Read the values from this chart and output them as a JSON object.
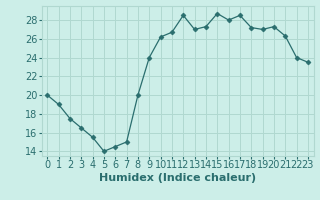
{
  "x": [
    0,
    1,
    2,
    3,
    4,
    5,
    6,
    7,
    8,
    9,
    10,
    11,
    12,
    13,
    14,
    15,
    16,
    17,
    18,
    19,
    20,
    21,
    22,
    23
  ],
  "y": [
    20.0,
    19.0,
    17.5,
    16.5,
    15.5,
    14.0,
    14.5,
    15.0,
    20.0,
    24.0,
    26.2,
    26.7,
    28.5,
    27.0,
    27.3,
    28.7,
    28.0,
    28.5,
    27.2,
    27.0,
    27.3,
    26.3,
    24.0,
    23.5
  ],
  "line_color": "#2a6e6e",
  "marker": "D",
  "marker_size": 2.5,
  "bg_color": "#cceee8",
  "grid_color": "#b0d8d0",
  "xlabel": "Humidex (Indice chaleur)",
  "xlabel_fontsize": 8,
  "tick_fontsize": 7,
  "ylim": [
    13.5,
    29.5
  ],
  "yticks": [
    14,
    16,
    18,
    20,
    22,
    24,
    26,
    28
  ],
  "xlim": [
    -0.5,
    23.5
  ],
  "xticks": [
    0,
    1,
    2,
    3,
    4,
    5,
    6,
    7,
    8,
    9,
    10,
    11,
    12,
    13,
    14,
    15,
    16,
    17,
    18,
    19,
    20,
    21,
    22,
    23
  ]
}
